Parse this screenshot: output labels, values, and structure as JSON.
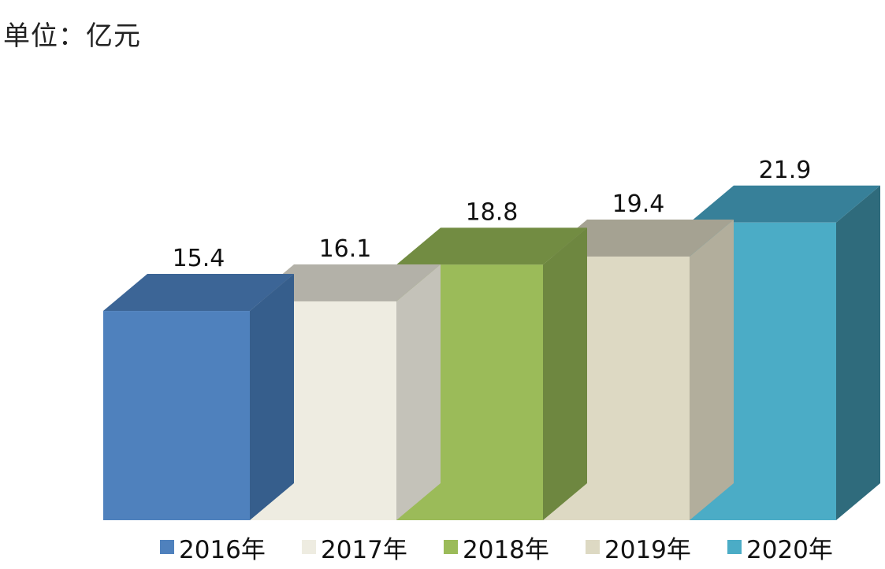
{
  "chart_data": {
    "type": "bar",
    "unit_label": "单位：亿元",
    "categories": [
      "2016年",
      "2017年",
      "2018年",
      "2019年",
      "2020年"
    ],
    "values": [
      15.4,
      16.1,
      18.8,
      19.4,
      21.9
    ],
    "data_labels": [
      "15.4",
      "16.1",
      "18.8",
      "19.4",
      "21.9"
    ],
    "three_d": true,
    "grid": false,
    "legend_position": "bottom",
    "colors": [
      {
        "front": "#4F81BD",
        "top": "#3C6596",
        "side": "#365E8C"
      },
      {
        "front": "#EEECE1",
        "top": "#B3B1A8",
        "side": "#C4C2B9"
      },
      {
        "front": "#9BBB59",
        "top": "#728C42",
        "side": "#6E8740"
      },
      {
        "front": "#DDD9C3",
        "top": "#A5A292",
        "side": "#B2AE9C"
      },
      {
        "front": "#4BACC6",
        "top": "#378099",
        "side": "#2F6B7C"
      }
    ]
  }
}
